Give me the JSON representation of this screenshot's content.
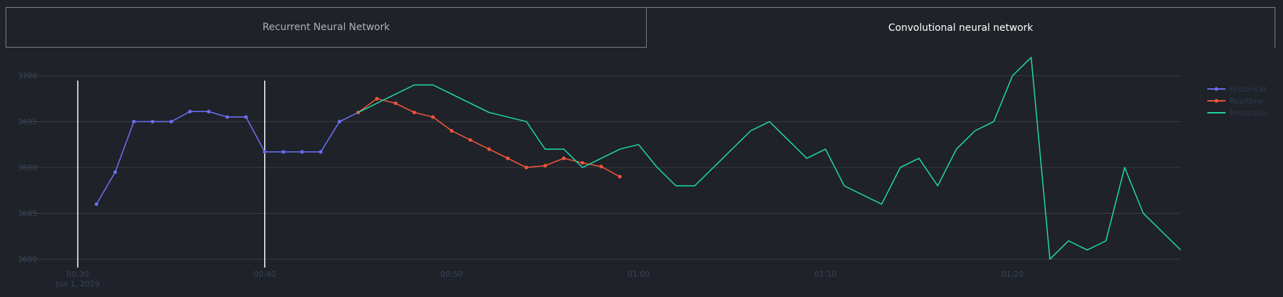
{
  "tabs": [
    {
      "label": "Recurrent Neural Network",
      "active": false
    },
    {
      "label": "Convolutional neural network",
      "active": true
    }
  ],
  "chart_data": {
    "type": "line",
    "title": "",
    "xlabel": "",
    "ylabel": "",
    "ylim": [
      3680,
      3702
    ],
    "xlim": [
      "2019-06-01 00:30",
      "2019-06-01 01:29"
    ],
    "x_ticks": [
      {
        "t": "2019-06-01 00:30",
        "label": "00:30",
        "sublabel": "Jun 1, 2019"
      },
      {
        "t": "2019-06-01 00:40",
        "label": "00:40",
        "sublabel": ""
      },
      {
        "t": "2019-06-01 00:50",
        "label": "00:50",
        "sublabel": ""
      },
      {
        "t": "2019-06-01 01:00",
        "label": "01:00",
        "sublabel": ""
      },
      {
        "t": "2019-06-01 01:10",
        "label": "01:10",
        "sublabel": ""
      },
      {
        "t": "2019-06-01 01:20",
        "label": "01:20",
        "sublabel": ""
      }
    ],
    "y_ticks": [
      3680,
      3685,
      3690,
      3695,
      3700
    ],
    "vertical_markers": [
      "2019-06-01 00:30",
      "2019-06-01 00:40"
    ],
    "grid": true,
    "legend_position": "top-right",
    "series": [
      {
        "name": "Historical",
        "color": "#6b6df0",
        "markers": true,
        "points": [
          [
            "2019-06-01 00:31",
            3686
          ],
          [
            "2019-06-01 00:32",
            3689.5
          ],
          [
            "2019-06-01 00:33",
            3695
          ],
          [
            "2019-06-01 00:34",
            3695
          ],
          [
            "2019-06-01 00:35",
            3695
          ],
          [
            "2019-06-01 00:36",
            3696.1
          ],
          [
            "2019-06-01 00:37",
            3696.1
          ],
          [
            "2019-06-01 00:38",
            3695.5
          ],
          [
            "2019-06-01 00:39",
            3695.5
          ],
          [
            "2019-06-01 00:40",
            3691.7
          ],
          [
            "2019-06-01 00:41",
            3691.7
          ],
          [
            "2019-06-01 00:42",
            3691.7
          ],
          [
            "2019-06-01 00:43",
            3691.7
          ],
          [
            "2019-06-01 00:44",
            3695
          ],
          [
            "2019-06-01 00:45",
            3696
          ]
        ]
      },
      {
        "name": "Realtime",
        "color": "#ef553b",
        "markers": true,
        "points": [
          [
            "2019-06-01 00:45",
            3696
          ],
          [
            "2019-06-01 00:46",
            3697.5
          ],
          [
            "2019-06-01 00:47",
            3697
          ],
          [
            "2019-06-01 00:48",
            3696
          ],
          [
            "2019-06-01 00:49",
            3695.5
          ],
          [
            "2019-06-01 00:50",
            3694
          ],
          [
            "2019-06-01 00:51",
            3693
          ],
          [
            "2019-06-01 00:52",
            3692
          ],
          [
            "2019-06-01 00:53",
            3691
          ],
          [
            "2019-06-01 00:54",
            3690
          ],
          [
            "2019-06-01 00:55",
            3690.2
          ],
          [
            "2019-06-01 00:56",
            3691
          ],
          [
            "2019-06-01 00:57",
            3690.5
          ],
          [
            "2019-06-01 00:58",
            3690.1
          ],
          [
            "2019-06-01 00:59",
            3689
          ]
        ]
      },
      {
        "name": "Prediction",
        "color": "#1fd1a1",
        "markers": false,
        "points": [
          [
            "2019-06-01 00:45",
            3696
          ],
          [
            "2019-06-01 00:48",
            3699
          ],
          [
            "2019-06-01 00:49",
            3699
          ],
          [
            "2019-06-01 00:52",
            3696
          ],
          [
            "2019-06-01 00:54",
            3695
          ],
          [
            "2019-06-01 00:55",
            3692
          ],
          [
            "2019-06-01 00:56",
            3692
          ],
          [
            "2019-06-01 00:57",
            3690
          ],
          [
            "2019-06-01 00:59",
            3692
          ],
          [
            "2019-06-01 01:00",
            3692.5
          ],
          [
            "2019-06-01 01:01",
            3690
          ],
          [
            "2019-06-01 01:02",
            3688
          ],
          [
            "2019-06-01 01:03",
            3688
          ],
          [
            "2019-06-01 01:06",
            3694
          ],
          [
            "2019-06-01 01:07",
            3695
          ],
          [
            "2019-06-01 01:09",
            3691
          ],
          [
            "2019-06-01 01:10",
            3692
          ],
          [
            "2019-06-01 01:11",
            3688
          ],
          [
            "2019-06-01 01:13",
            3686
          ],
          [
            "2019-06-01 01:14",
            3690
          ],
          [
            "2019-06-01 01:15",
            3691
          ],
          [
            "2019-06-01 01:16",
            3688
          ],
          [
            "2019-06-01 01:17",
            3692
          ],
          [
            "2019-06-01 01:18",
            3694
          ],
          [
            "2019-06-01 01:19",
            3695
          ],
          [
            "2019-06-01 01:20",
            3700
          ],
          [
            "2019-06-01 01:21",
            3702
          ],
          [
            "2019-06-01 01:22",
            3680
          ],
          [
            "2019-06-01 01:23",
            3682
          ],
          [
            "2019-06-01 01:24",
            3681
          ],
          [
            "2019-06-01 01:25",
            3682
          ],
          [
            "2019-06-01 01:26",
            3690
          ],
          [
            "2019-06-01 01:27",
            3685
          ],
          [
            "2019-06-01 01:29",
            3681
          ]
        ]
      }
    ]
  },
  "colors": {
    "background": "#1f2228",
    "grid": "#3a3e45",
    "tick": "#38455c",
    "marker_line": "#ffffff"
  }
}
